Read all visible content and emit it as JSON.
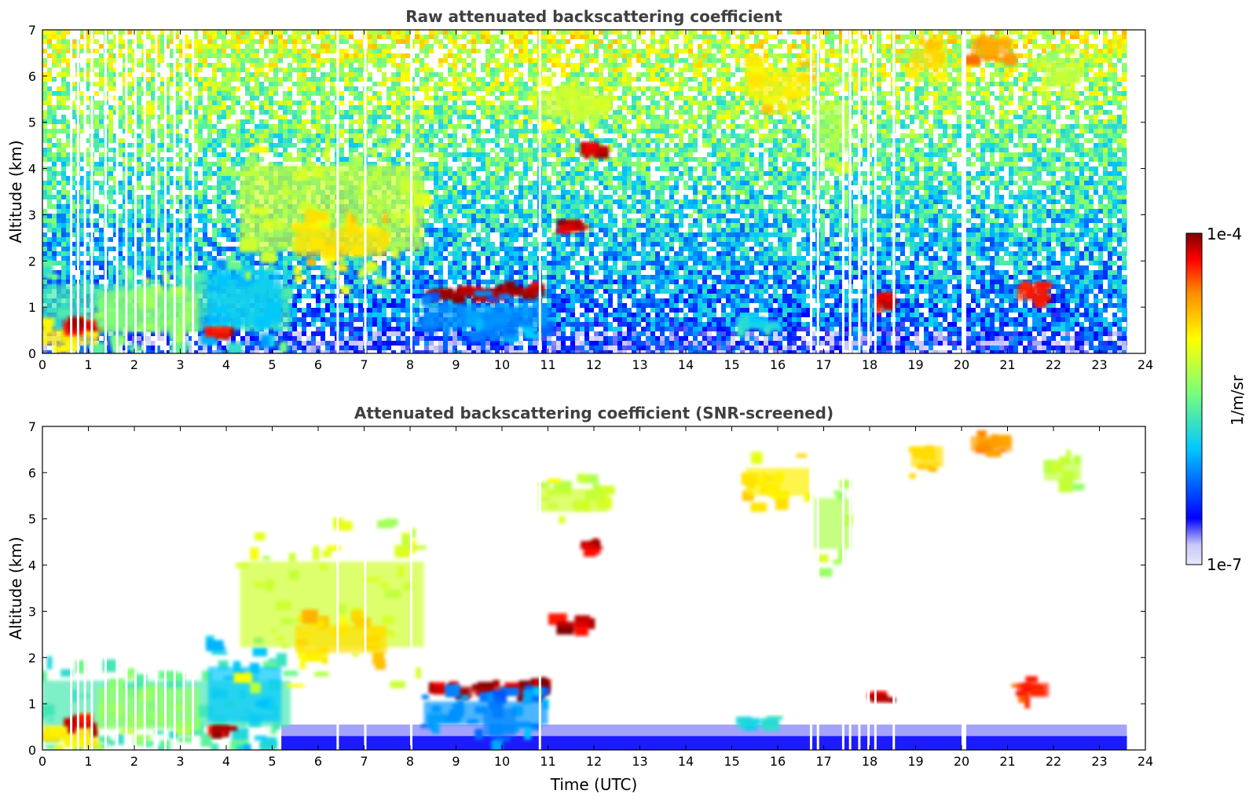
{
  "chart_data": [
    {
      "type": "heatmap",
      "title": "Raw attenuated backscattering coefficient",
      "xlabel": "",
      "ylabel": "Altitude (km)",
      "xlim": [
        0,
        24
      ],
      "ylim": [
        0,
        7
      ],
      "xticks": [
        "0",
        "1",
        "2",
        "3",
        "4",
        "5",
        "6",
        "7",
        "8",
        "9",
        "10",
        "11",
        "12",
        "13",
        "14",
        "15",
        "16",
        "17",
        "18",
        "19",
        "20",
        "21",
        "22",
        "23",
        "24"
      ],
      "yticks": [
        "0",
        "1",
        "2",
        "3",
        "4",
        "5",
        "6",
        "7"
      ],
      "data_end_hour": 23.6,
      "screened": false,
      "features": [
        {
          "t0": 0.0,
          "t1": 5.4,
          "h0": 0.0,
          "h1": 2.0,
          "level": 0.45
        },
        {
          "t0": 0.0,
          "t1": 1.2,
          "h0": 0.0,
          "h1": 0.7,
          "level": 0.7
        },
        {
          "t0": 0.55,
          "t1": 1.2,
          "h0": 0.42,
          "h1": 0.65,
          "level": 0.95
        },
        {
          "t0": 1.2,
          "t1": 3.4,
          "h0": 0.0,
          "h1": 1.8,
          "level": 0.55
        },
        {
          "t0": 3.6,
          "t1": 5.2,
          "h0": 0.0,
          "h1": 2.4,
          "level": 0.35
        },
        {
          "t0": 3.7,
          "t1": 4.1,
          "h0": 0.38,
          "h1": 0.48,
          "level": 0.95
        },
        {
          "t0": 4.3,
          "t1": 8.3,
          "h0": 1.3,
          "h1": 5.0,
          "level": 0.62
        },
        {
          "t0": 5.5,
          "t1": 7.5,
          "h0": 1.8,
          "h1": 3.0,
          "level": 0.72
        },
        {
          "t0": 8.4,
          "t1": 10.9,
          "h0": 1.15,
          "h1": 1.45,
          "level": 0.97
        },
        {
          "t0": 8.3,
          "t1": 11.0,
          "h0": 0.3,
          "h1": 1.3,
          "level": 0.3
        },
        {
          "t0": 9.6,
          "t1": 10.3,
          "h0": 0.0,
          "h1": 1.2,
          "level": 0.28
        },
        {
          "t0": 10.8,
          "t1": 12.3,
          "h0": 4.9,
          "h1": 5.9,
          "level": 0.62
        },
        {
          "t0": 11.7,
          "t1": 12.2,
          "h0": 4.3,
          "h1": 4.45,
          "level": 0.95
        },
        {
          "t0": 11.2,
          "t1": 11.9,
          "h0": 2.6,
          "h1": 2.85,
          "level": 0.95
        },
        {
          "t0": 15.3,
          "t1": 16.7,
          "h0": 5.2,
          "h1": 6.4,
          "level": 0.7
        },
        {
          "t0": 16.8,
          "t1": 17.6,
          "h0": 3.8,
          "h1": 6.0,
          "level": 0.58
        },
        {
          "t0": 18.1,
          "t1": 18.5,
          "h0": 1.0,
          "h1": 1.2,
          "level": 0.95
        },
        {
          "t0": 18.9,
          "t1": 19.6,
          "h0": 5.9,
          "h1": 6.8,
          "level": 0.72
        },
        {
          "t0": 20.2,
          "t1": 21.1,
          "h0": 6.3,
          "h1": 6.95,
          "level": 0.8
        },
        {
          "t0": 21.2,
          "t1": 21.9,
          "h0": 1.0,
          "h1": 1.6,
          "level": 0.9
        },
        {
          "t0": 21.8,
          "t1": 22.6,
          "h0": 5.6,
          "h1": 6.5,
          "level": 0.6
        },
        {
          "t0": 15.2,
          "t1": 16.0,
          "h0": 0.45,
          "h1": 0.75,
          "level": 0.4
        }
      ]
    },
    {
      "type": "heatmap",
      "title": "Attenuated backscattering coefficient (SNR-screened)",
      "xlabel": "Time (UTC)",
      "ylabel": "Altitude (km)",
      "xlim": [
        0,
        24
      ],
      "ylim": [
        0,
        7
      ],
      "xticks": [
        "0",
        "1",
        "2",
        "3",
        "4",
        "5",
        "6",
        "7",
        "8",
        "9",
        "10",
        "11",
        "12",
        "13",
        "14",
        "15",
        "16",
        "17",
        "18",
        "19",
        "20",
        "21",
        "22",
        "23",
        "24"
      ],
      "yticks": [
        "0",
        "1",
        "2",
        "3",
        "4",
        "5",
        "6",
        "7"
      ],
      "data_end_hour": 23.6,
      "screened": true
    }
  ],
  "colorbar": {
    "top_label": "1e-4",
    "bottom_label": "1e-7",
    "unit_label": "1/m/sr",
    "scale": "log"
  },
  "colors": {
    "colormap": [
      "#e6e6fa",
      "#0000ff",
      "#00c8ff",
      "#7cff7a",
      "#ffff00",
      "#ff8c00",
      "#ff0000",
      "#800000"
    ]
  }
}
